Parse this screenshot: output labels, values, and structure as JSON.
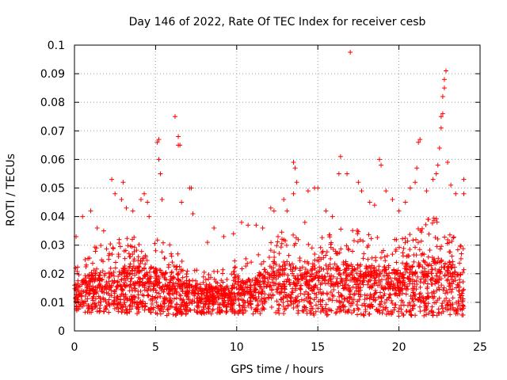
{
  "chart_data": {
    "type": "scatter",
    "title": "Day 146 of 2022, Rate Of TEC Index for receiver cesb",
    "xlabel": "GPS time / hours",
    "ylabel": "ROTI / TECUs",
    "xlim": [
      0,
      25
    ],
    "ylim": [
      0,
      0.1
    ],
    "xticks": [
      0,
      5,
      10,
      15,
      20,
      25
    ],
    "yticks": [
      0,
      0.01,
      0.02,
      0.03,
      0.04,
      0.05,
      0.06,
      0.07,
      0.08,
      0.09,
      0.1
    ],
    "xtick_labels": [
      "0",
      "5",
      "10",
      "15",
      "20",
      "25"
    ],
    "ytick_labels": [
      "0",
      "0.01",
      "0.02",
      "0.03",
      "0.04",
      "0.05",
      "0.06",
      "0.07",
      "0.08",
      "0.09",
      "0.1"
    ],
    "grid": true,
    "marker": "+",
    "color": "#ff0000",
    "series": [
      {
        "name": "ROTI",
        "bulk_profile": {
          "x_start": 0,
          "x_end": 24,
          "count": 2600,
          "hours": [
            0,
            1,
            2,
            3,
            4,
            5,
            6,
            7,
            8,
            9,
            10,
            11,
            12,
            13,
            14,
            15,
            16,
            17,
            18,
            19,
            20,
            21,
            22,
            23,
            24
          ],
          "typical_low": [
            0.007,
            0.006,
            0.006,
            0.006,
            0.006,
            0.006,
            0.005,
            0.006,
            0.006,
            0.006,
            0.006,
            0.006,
            0.006,
            0.006,
            0.006,
            0.005,
            0.006,
            0.006,
            0.005,
            0.006,
            0.005,
            0.005,
            0.005,
            0.005,
            0.005
          ],
          "typical_high": [
            0.022,
            0.03,
            0.03,
            0.033,
            0.035,
            0.033,
            0.03,
            0.023,
            0.021,
            0.022,
            0.025,
            0.027,
            0.033,
            0.035,
            0.033,
            0.033,
            0.035,
            0.037,
            0.035,
            0.034,
            0.033,
            0.037,
            0.04,
            0.038,
            0.03
          ]
        },
        "points": [
          [
            0.1,
            0.033
          ],
          [
            0.5,
            0.04
          ],
          [
            1.0,
            0.042
          ],
          [
            1.4,
            0.036
          ],
          [
            1.8,
            0.035
          ],
          [
            2.3,
            0.053
          ],
          [
            2.5,
            0.048
          ],
          [
            2.9,
            0.046
          ],
          [
            3.0,
            0.052
          ],
          [
            3.2,
            0.043
          ],
          [
            3.6,
            0.042
          ],
          [
            4.1,
            0.046
          ],
          [
            4.3,
            0.048
          ],
          [
            4.5,
            0.045
          ],
          [
            4.6,
            0.04
          ],
          [
            5.1,
            0.066
          ],
          [
            5.2,
            0.067
          ],
          [
            5.2,
            0.06
          ],
          [
            5.3,
            0.055
          ],
          [
            5.4,
            0.046
          ],
          [
            6.2,
            0.075
          ],
          [
            6.4,
            0.068
          ],
          [
            6.4,
            0.065
          ],
          [
            6.5,
            0.065
          ],
          [
            6.6,
            0.045
          ],
          [
            7.1,
            0.05
          ],
          [
            7.2,
            0.05
          ],
          [
            7.3,
            0.041
          ],
          [
            8.2,
            0.031
          ],
          [
            8.6,
            0.036
          ],
          [
            9.2,
            0.033
          ],
          [
            9.8,
            0.034
          ],
          [
            10.3,
            0.038
          ],
          [
            10.7,
            0.037
          ],
          [
            11.2,
            0.037
          ],
          [
            11.6,
            0.036
          ],
          [
            12.1,
            0.043
          ],
          [
            12.3,
            0.042
          ],
          [
            12.9,
            0.046
          ],
          [
            13.1,
            0.042
          ],
          [
            13.5,
            0.059
          ],
          [
            13.6,
            0.057
          ],
          [
            13.5,
            0.048
          ],
          [
            13.7,
            0.052
          ],
          [
            14.2,
            0.038
          ],
          [
            14.4,
            0.049
          ],
          [
            14.8,
            0.05
          ],
          [
            15.0,
            0.05
          ],
          [
            15.5,
            0.042
          ],
          [
            15.9,
            0.04
          ],
          [
            16.3,
            0.055
          ],
          [
            16.4,
            0.061
          ],
          [
            16.8,
            0.055
          ],
          [
            17.0,
            0.0975
          ],
          [
            17.5,
            0.052
          ],
          [
            17.7,
            0.049
          ],
          [
            18.2,
            0.045
          ],
          [
            18.5,
            0.044
          ],
          [
            18.8,
            0.06
          ],
          [
            18.9,
            0.058
          ],
          [
            19.2,
            0.049
          ],
          [
            19.6,
            0.046
          ],
          [
            20.0,
            0.042
          ],
          [
            20.4,
            0.045
          ],
          [
            20.7,
            0.05
          ],
          [
            21.0,
            0.052
          ],
          [
            21.1,
            0.057
          ],
          [
            21.2,
            0.066
          ],
          [
            21.3,
            0.067
          ],
          [
            21.7,
            0.049
          ],
          [
            22.1,
            0.053
          ],
          [
            22.3,
            0.055
          ],
          [
            22.4,
            0.058
          ],
          [
            22.5,
            0.064
          ],
          [
            22.6,
            0.071
          ],
          [
            22.6,
            0.075
          ],
          [
            22.7,
            0.076
          ],
          [
            22.7,
            0.082
          ],
          [
            22.8,
            0.085
          ],
          [
            22.8,
            0.088
          ],
          [
            22.9,
            0.091
          ],
          [
            23.0,
            0.059
          ],
          [
            23.2,
            0.051
          ],
          [
            23.5,
            0.048
          ],
          [
            24.0,
            0.053
          ],
          [
            24.0,
            0.048
          ]
        ]
      }
    ]
  }
}
